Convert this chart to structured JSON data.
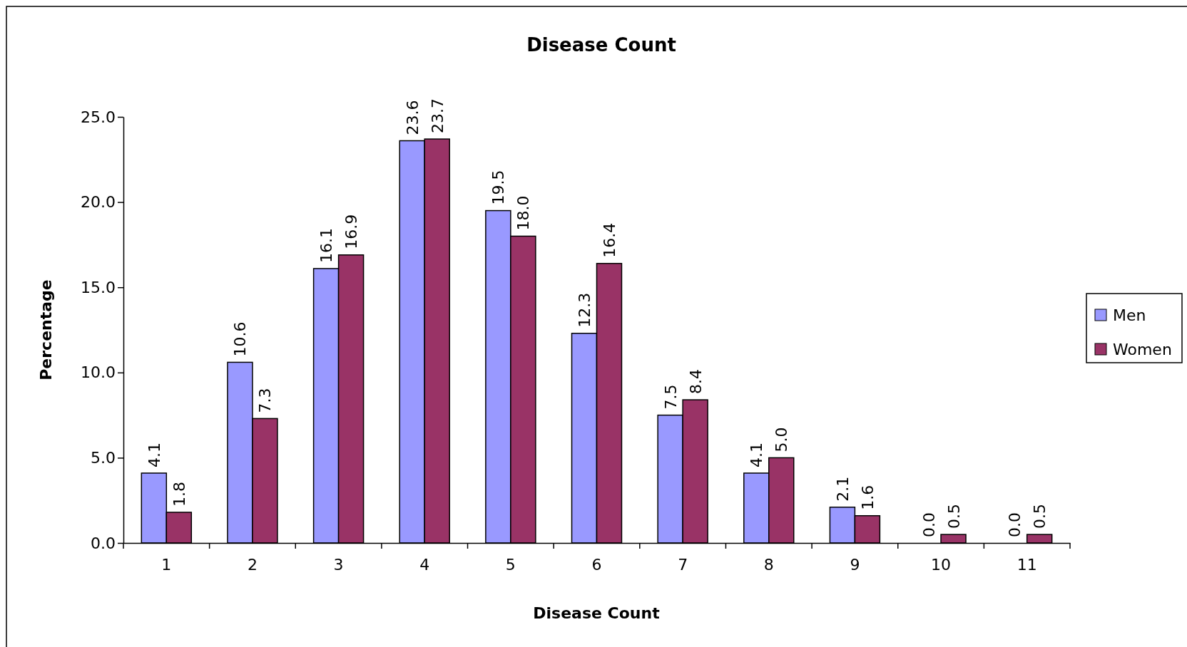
{
  "chart_data": {
    "type": "bar",
    "title": "Disease Count",
    "xlabel": "Disease Count",
    "ylabel": "Percentage",
    "categories": [
      "1",
      "2",
      "3",
      "4",
      "5",
      "6",
      "7",
      "8",
      "9",
      "10",
      "11"
    ],
    "series": [
      {
        "name": "Men",
        "color": "#9999ff",
        "values": [
          4.1,
          10.6,
          16.1,
          23.6,
          19.5,
          12.3,
          7.5,
          4.1,
          2.1,
          0.0,
          0.0
        ],
        "value_labels": [
          "4.1",
          "10.6",
          "16.1",
          "23.6",
          "19.5",
          "12.3",
          "7.5",
          "4.1",
          "2.1",
          "0.0",
          "0.0"
        ]
      },
      {
        "name": "Women",
        "color": "#993366",
        "values": [
          1.8,
          7.3,
          16.9,
          23.7,
          18.0,
          16.4,
          8.4,
          5.0,
          1.6,
          0.5,
          0.5
        ],
        "value_labels": [
          "1.8",
          "7.3",
          "16.9",
          "23.7",
          "18.0",
          "16.4",
          "8.4",
          "5.0",
          "1.6",
          "0.5",
          "0.5"
        ]
      }
    ],
    "ylim": [
      0,
      25
    ],
    "yticks": [
      {
        "value": 0,
        "label": "0.0"
      },
      {
        "value": 5,
        "label": "5.0"
      },
      {
        "value": 10,
        "label": "10.0"
      },
      {
        "value": 15,
        "label": "15.0"
      },
      {
        "value": 20,
        "label": "20.0"
      },
      {
        "value": 25,
        "label": "25.0"
      }
    ],
    "legend": "right"
  }
}
